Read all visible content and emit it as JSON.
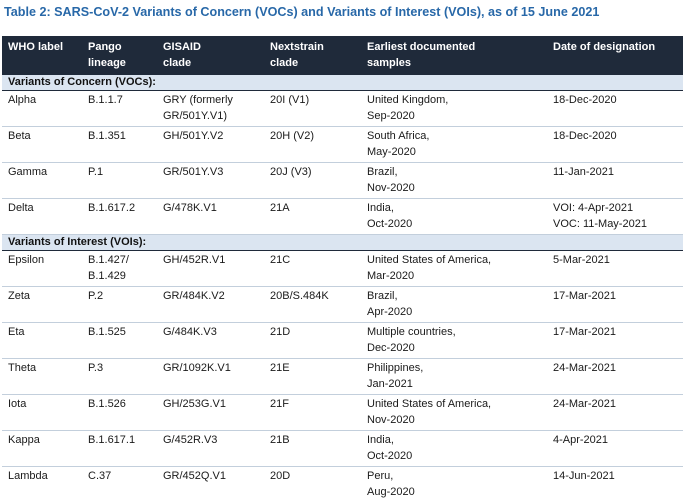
{
  "title": "Table 2: SARS-CoV-2 Variants of Concern (VOCs) and Variants of Interest (VOIs), as of 15 June 2021",
  "headers": [
    [
      "WHO label"
    ],
    [
      "Pango",
      "lineage"
    ],
    [
      "GISAID",
      "clade"
    ],
    [
      "Nextstrain",
      "clade"
    ],
    [
      "Earliest documented",
      "samples"
    ],
    [
      "Date of designation"
    ]
  ],
  "sections": [
    {
      "label": "Variants of Concern (VOCs):",
      "rows": [
        [
          [
            "Alpha"
          ],
          [
            "B.1.1.7"
          ],
          [
            "GRY (formerly",
            "GR/501Y.V1)"
          ],
          [
            "20I (V1)"
          ],
          [
            "United Kingdom,",
            "Sep-2020"
          ],
          [
            "18-Dec-2020"
          ]
        ],
        [
          [
            "Beta"
          ],
          [
            "B.1.351"
          ],
          [
            "GH/501Y.V2"
          ],
          [
            "20H (V2)"
          ],
          [
            "South Africa,",
            "May-2020"
          ],
          [
            "18-Dec-2020"
          ]
        ],
        [
          [
            "Gamma"
          ],
          [
            "P.1"
          ],
          [
            "GR/501Y.V3"
          ],
          [
            "20J (V3)"
          ],
          [
            "Brazil,",
            "Nov-2020"
          ],
          [
            "11-Jan-2021"
          ]
        ],
        [
          [
            "Delta"
          ],
          [
            "B.1.617.2"
          ],
          [
            "G/478K.V1"
          ],
          [
            "21A"
          ],
          [
            "India,",
            "Oct-2020"
          ],
          [
            "VOI: 4-Apr-2021",
            "VOC: 11-May-2021"
          ]
        ]
      ]
    },
    {
      "label": "Variants of Interest (VOIs):",
      "rows": [
        [
          [
            "Epsilon"
          ],
          [
            "B.1.427/",
            "B.1.429"
          ],
          [
            "GH/452R.V1"
          ],
          [
            "21C"
          ],
          [
            "United States of America,",
            "Mar-2020"
          ],
          [
            "5-Mar-2021"
          ]
        ],
        [
          [
            "Zeta"
          ],
          [
            "P.2"
          ],
          [
            "GR/484K.V2"
          ],
          [
            "20B/S.484K"
          ],
          [
            "Brazil,",
            "Apr-2020"
          ],
          [
            "17-Mar-2021"
          ]
        ],
        [
          [
            "Eta"
          ],
          [
            "B.1.525"
          ],
          [
            "G/484K.V3"
          ],
          [
            "21D"
          ],
          [
            "Multiple countries,",
            "Dec-2020"
          ],
          [
            "17-Mar-2021"
          ]
        ],
        [
          [
            "Theta"
          ],
          [
            "P.3"
          ],
          [
            "GR/1092K.V1"
          ],
          [
            "21E"
          ],
          [
            "Philippines,",
            "Jan-2021"
          ],
          [
            "24-Mar-2021"
          ]
        ],
        [
          [
            "Iota"
          ],
          [
            "B.1.526"
          ],
          [
            "GH/253G.V1"
          ],
          [
            "21F"
          ],
          [
            "United States of America,",
            "Nov-2020"
          ],
          [
            "24-Mar-2021"
          ]
        ],
        [
          [
            "Kappa"
          ],
          [
            "B.1.617.1"
          ],
          [
            "G/452R.V3"
          ],
          [
            "21B"
          ],
          [
            "India,",
            "Oct-2020"
          ],
          [
            "4-Apr-2021"
          ]
        ],
        [
          [
            "Lambda"
          ],
          [
            "C.37"
          ],
          [
            "GR/452Q.V1"
          ],
          [
            "20D"
          ],
          [
            "Peru,",
            "Aug-2020"
          ],
          [
            "14-Jun-2021"
          ]
        ]
      ]
    }
  ]
}
